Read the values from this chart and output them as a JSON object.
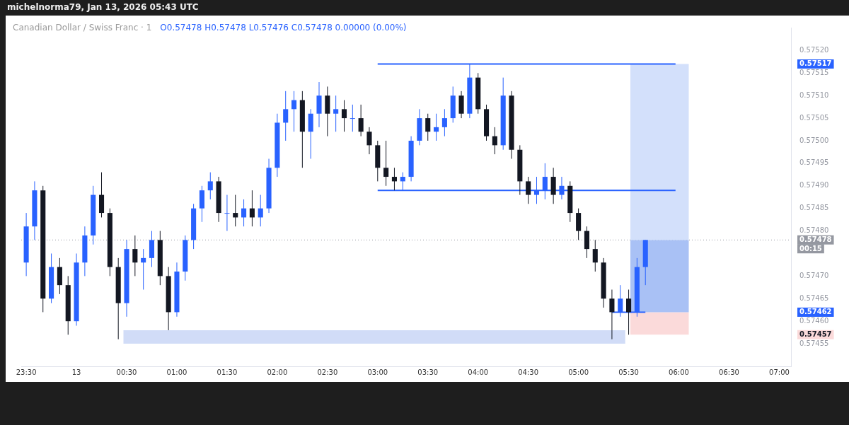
{
  "chart_data": {
    "type": "candlestick",
    "title": "Canadian Dollar / Swiss Franc · 1",
    "subtitle": "O0.57478 H0.57478 L0.57476 C0.57478 0.00000 (0.00%)",
    "annotations": [
      "michelnorma79, Jan 13, 2026 05:43 UTC",
      "00:15"
    ],
    "x": [
      "2026-01-12T23:30",
      "2026-01-12T23:35",
      "2026-01-12T23:40",
      "2026-01-12T23:45",
      "2026-01-12T23:50",
      "2026-01-12T23:55",
      "2026-01-13T00:00",
      "2026-01-13T00:05",
      "2026-01-13T00:10",
      "2026-01-13T00:15",
      "2026-01-13T00:20",
      "2026-01-13T00:25",
      "2026-01-13T00:30",
      "2026-01-13T00:35",
      "2026-01-13T00:40",
      "2026-01-13T00:45",
      "2026-01-13T00:50",
      "2026-01-13T00:55",
      "2026-01-13T01:00",
      "2026-01-13T01:05",
      "2026-01-13T01:10",
      "2026-01-13T01:15",
      "2026-01-13T01:20",
      "2026-01-13T01:25",
      "2026-01-13T01:30",
      "2026-01-13T01:35",
      "2026-01-13T01:40",
      "2026-01-13T01:45",
      "2026-01-13T01:50",
      "2026-01-13T01:55",
      "2026-01-13T02:00",
      "2026-01-13T02:05",
      "2026-01-13T02:10",
      "2026-01-13T02:15",
      "2026-01-13T02:20",
      "2026-01-13T02:25",
      "2026-01-13T02:30",
      "2026-01-13T02:35",
      "2026-01-13T02:40",
      "2026-01-13T02:45",
      "2026-01-13T02:50",
      "2026-01-13T02:55",
      "2026-01-13T03:00",
      "2026-01-13T03:05",
      "2026-01-13T03:10",
      "2026-01-13T03:15",
      "2026-01-13T03:20",
      "2026-01-13T03:25",
      "2026-01-13T03:30",
      "2026-01-13T03:35",
      "2026-01-13T03:40",
      "2026-01-13T03:45",
      "2026-01-13T03:50",
      "2026-01-13T03:55",
      "2026-01-13T04:00",
      "2026-01-13T04:05",
      "2026-01-13T04:10",
      "2026-01-13T04:15",
      "2026-01-13T04:20",
      "2026-01-13T04:25",
      "2026-01-13T04:30",
      "2026-01-13T04:35",
      "2026-01-13T04:40",
      "2026-01-13T04:45",
      "2026-01-13T04:50",
      "2026-01-13T04:55",
      "2026-01-13T05:00",
      "2026-01-13T05:05",
      "2026-01-13T05:10",
      "2026-01-13T05:15",
      "2026-01-13T05:20",
      "2026-01-13T05:25",
      "2026-01-13T05:30",
      "2026-01-13T05:35",
      "2026-01-13T05:40"
    ],
    "ohlc": [
      [
        0.57473,
        0.57484,
        0.5747,
        0.57481
      ],
      [
        0.57481,
        0.57491,
        0.57478,
        0.57489
      ],
      [
        0.57489,
        0.5749,
        0.57462,
        0.57465
      ],
      [
        0.57465,
        0.57475,
        0.57464,
        0.57472
      ],
      [
        0.57472,
        0.57474,
        0.57466,
        0.57468
      ],
      [
        0.57468,
        0.5747,
        0.57457,
        0.5746
      ],
      [
        0.5746,
        0.57475,
        0.57459,
        0.57473
      ],
      [
        0.57473,
        0.57481,
        0.5747,
        0.57479
      ],
      [
        0.57479,
        0.5749,
        0.57477,
        0.57488
      ],
      [
        0.57488,
        0.57493,
        0.57483,
        0.57484
      ],
      [
        0.57484,
        0.57485,
        0.5747,
        0.57472
      ],
      [
        0.57472,
        0.57474,
        0.57456,
        0.57464
      ],
      [
        0.57464,
        0.57478,
        0.57461,
        0.57476
      ],
      [
        0.57476,
        0.57479,
        0.5747,
        0.57473
      ],
      [
        0.57473,
        0.57476,
        0.57467,
        0.57474
      ],
      [
        0.57474,
        0.5748,
        0.57472,
        0.57478
      ],
      [
        0.57478,
        0.5748,
        0.57468,
        0.5747
      ],
      [
        0.5747,
        0.57472,
        0.57458,
        0.57462
      ],
      [
        0.57462,
        0.57473,
        0.57461,
        0.57471
      ],
      [
        0.57471,
        0.57479,
        0.57469,
        0.57478
      ],
      [
        0.57478,
        0.57486,
        0.57476,
        0.57485
      ],
      [
        0.57485,
        0.5749,
        0.57482,
        0.57489
      ],
      [
        0.57489,
        0.57493,
        0.57487,
        0.57491
      ],
      [
        0.57491,
        0.57492,
        0.57482,
        0.57484
      ],
      [
        0.57484,
        0.57488,
        0.5748,
        0.57484
      ],
      [
        0.57484,
        0.57488,
        0.57481,
        0.57483
      ],
      [
        0.57483,
        0.57487,
        0.57481,
        0.57485
      ],
      [
        0.57485,
        0.57489,
        0.57481,
        0.57483
      ],
      [
        0.57483,
        0.57488,
        0.57481,
        0.57485
      ],
      [
        0.57485,
        0.57496,
        0.57484,
        0.57494
      ],
      [
        0.57494,
        0.57506,
        0.57492,
        0.57504
      ],
      [
        0.57504,
        0.57511,
        0.575,
        0.57507
      ],
      [
        0.57507,
        0.57511,
        0.57502,
        0.57509
      ],
      [
        0.57509,
        0.57511,
        0.57494,
        0.57502
      ],
      [
        0.57502,
        0.57507,
        0.57496,
        0.57506
      ],
      [
        0.57506,
        0.57513,
        0.57503,
        0.5751
      ],
      [
        0.5751,
        0.57512,
        0.57501,
        0.57506
      ],
      [
        0.57506,
        0.5751,
        0.57502,
        0.57507
      ],
      [
        0.57507,
        0.57509,
        0.57502,
        0.57505
      ],
      [
        0.57505,
        0.57508,
        0.57502,
        0.57505
      ],
      [
        0.57505,
        0.57508,
        0.57501,
        0.57502
      ],
      [
        0.57502,
        0.57503,
        0.57497,
        0.57499
      ],
      [
        0.57499,
        0.575,
        0.57491,
        0.57494
      ],
      [
        0.57494,
        0.575,
        0.5749,
        0.57492
      ],
      [
        0.57492,
        0.57494,
        0.57489,
        0.57491
      ],
      [
        0.57491,
        0.57493,
        0.57489,
        0.57492
      ],
      [
        0.57492,
        0.57501,
        0.57491,
        0.575
      ],
      [
        0.575,
        0.57507,
        0.57499,
        0.57505
      ],
      [
        0.57505,
        0.57506,
        0.575,
        0.57502
      ],
      [
        0.57502,
        0.57506,
        0.575,
        0.57503
      ],
      [
        0.57503,
        0.57507,
        0.57501,
        0.57505
      ],
      [
        0.57505,
        0.57512,
        0.57504,
        0.5751
      ],
      [
        0.5751,
        0.57511,
        0.57505,
        0.57506
      ],
      [
        0.57506,
        0.57517,
        0.57505,
        0.57514
      ],
      [
        0.57514,
        0.57515,
        0.57506,
        0.57507
      ],
      [
        0.57507,
        0.57508,
        0.575,
        0.57501
      ],
      [
        0.57501,
        0.57503,
        0.57497,
        0.57499
      ],
      [
        0.57499,
        0.57514,
        0.57498,
        0.5751
      ],
      [
        0.5751,
        0.57511,
        0.57496,
        0.57498
      ],
      [
        0.57498,
        0.57499,
        0.57488,
        0.57491
      ],
      [
        0.57491,
        0.57492,
        0.57486,
        0.57488
      ],
      [
        0.57488,
        0.57492,
        0.57486,
        0.57489
      ],
      [
        0.57489,
        0.57495,
        0.57487,
        0.57492
      ],
      [
        0.57492,
        0.57494,
        0.57486,
        0.57488
      ],
      [
        0.57488,
        0.57492,
        0.57487,
        0.5749
      ],
      [
        0.5749,
        0.57491,
        0.57482,
        0.57484
      ],
      [
        0.57484,
        0.57485,
        0.57478,
        0.5748
      ],
      [
        0.5748,
        0.57481,
        0.57474,
        0.57476
      ],
      [
        0.57476,
        0.57478,
        0.57471,
        0.57473
      ],
      [
        0.57473,
        0.57474,
        0.57463,
        0.57465
      ],
      [
        0.57465,
        0.57467,
        0.57456,
        0.57462
      ],
      [
        0.57462,
        0.57468,
        0.57461,
        0.57465
      ],
      [
        0.57465,
        0.57467,
        0.57457,
        0.57462
      ],
      [
        0.57462,
        0.57474,
        0.57461,
        0.57472
      ],
      [
        0.57472,
        0.57478,
        0.57468,
        0.57478
      ]
    ],
    "colors": [
      "#2962ff",
      "#2962ff",
      "#131722",
      "#2962ff",
      "#131722",
      "#131722",
      "#2962ff",
      "#2962ff",
      "#2962ff",
      "#131722",
      "#131722",
      "#131722",
      "#2962ff",
      "#131722",
      "#2962ff",
      "#2962ff",
      "#131722",
      "#131722",
      "#2962ff",
      "#2962ff",
      "#2962ff",
      "#2962ff",
      "#2962ff",
      "#131722",
      "#2962ff",
      "#131722",
      "#2962ff",
      "#131722",
      "#2962ff",
      "#2962ff",
      "#2962ff",
      "#2962ff",
      "#2962ff",
      "#131722",
      "#2962ff",
      "#2962ff",
      "#131722",
      "#2962ff",
      "#131722",
      "#2962ff",
      "#131722",
      "#131722",
      "#131722",
      "#131722",
      "#131722",
      "#2962ff",
      "#2962ff",
      "#2962ff",
      "#131722",
      "#2962ff",
      "#2962ff",
      "#2962ff",
      "#131722",
      "#2962ff",
      "#131722",
      "#131722",
      "#131722",
      "#2962ff",
      "#131722",
      "#131722",
      "#131722",
      "#2962ff",
      "#2962ff",
      "#131722",
      "#2962ff",
      "#131722",
      "#131722",
      "#131722",
      "#131722",
      "#131722",
      "#131722",
      "#2962ff",
      "#131722",
      "#2962ff",
      "#2962ff"
    ],
    "series": [
      {
        "type": "area",
        "x": [
          "2026-01-13T00:28",
          "2026-01-13T05:28"
        ],
        "values": [
          null,
          null
        ],
        "upper": [
          0.57458,
          0.57458
        ],
        "lower": [
          0.57455,
          0.57455
        ],
        "color": "#d1dcf7"
      },
      {
        "type": "area",
        "x": [
          "2026-01-13T05:31",
          "2026-01-13T06:06"
        ],
        "values": [
          null,
          null
        ],
        "upper": [
          0.57517,
          0.57517
        ],
        "lower": [
          0.57478,
          0.57478
        ],
        "color": "#d3e0fb"
      },
      {
        "type": "area",
        "x": [
          "2026-01-13T05:31",
          "2026-01-13T06:06"
        ],
        "values": [
          null,
          null
        ],
        "upper": [
          0.57478,
          0.57478
        ],
        "lower": [
          0.57462,
          0.57462
        ],
        "color": "#a9c1f5"
      },
      {
        "type": "area",
        "x": [
          "2026-01-13T05:31",
          "2026-01-13T06:06"
        ],
        "values": [
          null,
          null
        ],
        "upper": [
          0.57462,
          0.57462
        ],
        "lower": [
          0.57457,
          0.57457
        ],
        "color": "#fbdada"
      },
      {
        "type": "line",
        "x": [
          "2026-01-13T03:00",
          "2026-01-13T05:58"
        ],
        "values": [
          0.57517,
          0.57517
        ],
        "color": "#2962ff"
      },
      {
        "type": "line",
        "x": [
          "2026-01-13T03:00",
          "2026-01-13T05:58"
        ],
        "values": [
          0.57489,
          0.57489
        ],
        "color": "#2962ff"
      },
      {
        "type": "line",
        "x": [
          "2026-01-13T05:20",
          "2026-01-13T05:40"
        ],
        "values": [
          0.57462,
          0.57462
        ],
        "color": "#2962ff"
      }
    ],
    "ref_lines": [
      {
        "axis": "y",
        "value": 0.57478,
        "color": "#9598a1",
        "line_style": "dotted"
      }
    ],
    "xlim": [
      "2026-01-12T23:27",
      "2026-01-13T07:07"
    ],
    "xticks": [
      {
        "value": "2026-01-12T23:30",
        "label": "23:30"
      },
      {
        "value": "2026-01-13T00:00",
        "label": "13"
      },
      {
        "value": "2026-01-13T00:30",
        "label": "00:30"
      },
      {
        "value": "2026-01-13T01:00",
        "label": "01:00"
      },
      {
        "value": "2026-01-13T01:30",
        "label": "01:30"
      },
      {
        "value": "2026-01-13T02:00",
        "label": "02:00"
      },
      {
        "value": "2026-01-13T02:30",
        "label": "02:30"
      },
      {
        "value": "2026-01-13T03:00",
        "label": "03:00"
      },
      {
        "value": "2026-01-13T03:30",
        "label": "03:30"
      },
      {
        "value": "2026-01-13T04:00",
        "label": "04:00"
      },
      {
        "value": "2026-01-13T04:30",
        "label": "04:30"
      },
      {
        "value": "2026-01-13T05:00",
        "label": "05:00"
      },
      {
        "value": "2026-01-13T05:30",
        "label": "05:30"
      },
      {
        "value": "2026-01-13T06:00",
        "label": "06:00"
      },
      {
        "value": "2026-01-13T06:30",
        "label": "06:30"
      },
      {
        "value": "2026-01-13T07:00",
        "label": "07:00"
      }
    ],
    "ylim": [
      0.5745,
      0.57525
    ],
    "yticks": [
      {
        "value": 0.5752,
        "label": "0.57520"
      },
      0.57517,
      0.57515,
      {
        "value": 0.5751,
        "label": "0.57510"
      },
      0.57505,
      {
        "value": 0.575,
        "label": "0.57500"
      },
      0.57495,
      {
        "value": 0.5749,
        "label": "0.57490"
      },
      0.57485,
      {
        "value": 0.5748,
        "label": "0.57480"
      },
      0.57478,
      {
        "value": 0.5747,
        "label": "0.57470"
      },
      0.57465,
      0.57462,
      {
        "value": 0.5746,
        "label": "0.57460"
      },
      0.57457,
      0.57455
    ]
  }
}
